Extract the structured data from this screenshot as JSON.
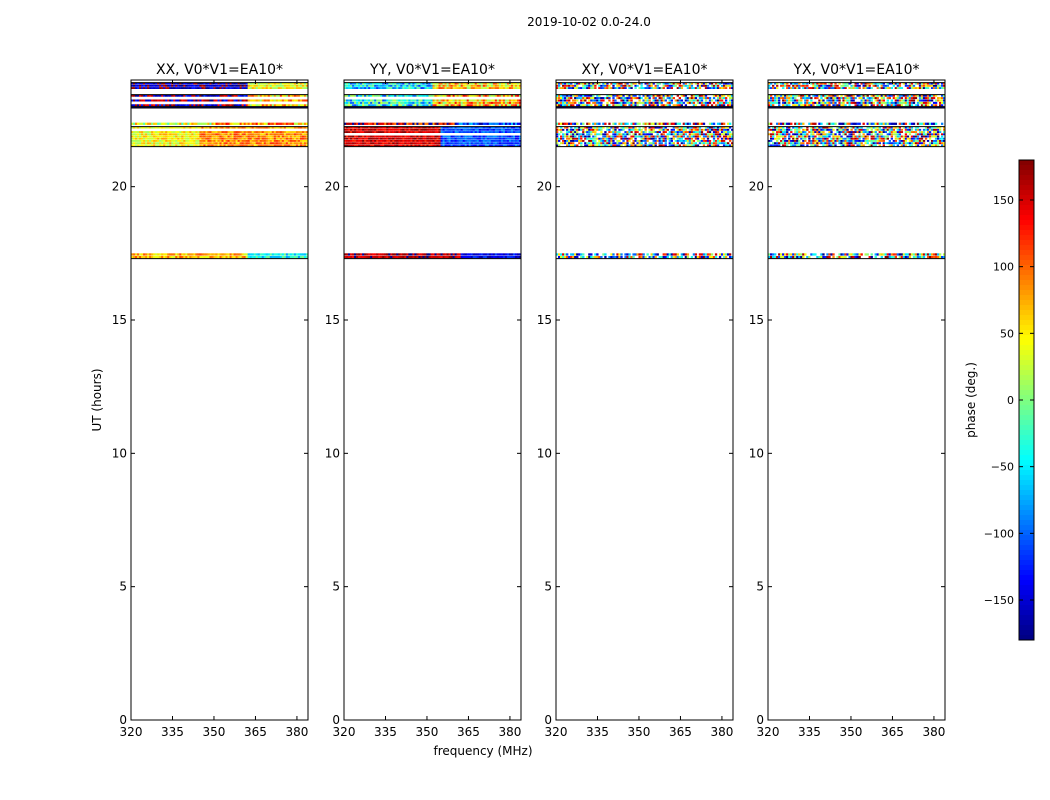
{
  "chart_data": {
    "type": "heatmap",
    "suptitle": "2019-10-02 0.0-24.0",
    "xlabel": "frequency (MHz)",
    "ylabel": "UT (hours)",
    "xlim": [
      320,
      384
    ],
    "ylim": [
      0,
      24
    ],
    "xticks": [
      "320",
      "335",
      "350",
      "365",
      "380"
    ],
    "yticks": [
      "0",
      "5",
      "10",
      "15",
      "20"
    ],
    "colorbar": {
      "label": "phase (deg.)",
      "range": [
        -180,
        180
      ],
      "ticks": [
        "150",
        "100",
        "50",
        "0",
        "−50",
        "−100",
        "−150"
      ],
      "tick_values": [
        150,
        100,
        50,
        0,
        -50,
        -100,
        -150
      ],
      "colormap": "jet"
    },
    "time_bands_hours": [
      [
        23.65,
        23.9
      ],
      [
        23.0,
        23.45
      ],
      [
        22.95,
        23.0
      ],
      [
        22.3,
        22.4
      ],
      [
        21.5,
        22.25
      ],
      [
        17.3,
        17.5
      ]
    ],
    "panels": [
      {
        "title": "XX, V0*V1=EA10*",
        "band_phase_deg": [
          {
            "freq_split_mhz": 362,
            "low_freq_phase": -165,
            "high_freq_phase": 40,
            "noise": 40
          },
          {
            "freq_split_mhz": 362,
            "low_freq_phase": -170,
            "high_freq_phase": 60,
            "noise": 60
          },
          {
            "freq_split_mhz": 384,
            "low_freq_phase": -175,
            "high_freq_phase": -175,
            "noise": 5
          },
          {
            "freq_split_mhz": 350,
            "low_freq_phase": 30,
            "high_freq_phase": 80,
            "noise": 60
          },
          {
            "freq_split_mhz": 345,
            "low_freq_phase": 45,
            "high_freq_phase": 85,
            "noise": 35
          },
          {
            "freq_split_mhz": 362,
            "low_freq_phase": 70,
            "high_freq_phase": -40,
            "noise": 40
          }
        ]
      },
      {
        "title": "YY, V0*V1=EA10*",
        "band_phase_deg": [
          {
            "freq_split_mhz": 352,
            "low_freq_phase": -60,
            "high_freq_phase": 60,
            "noise": 60
          },
          {
            "freq_split_mhz": 352,
            "low_freq_phase": -40,
            "high_freq_phase": 70,
            "noise": 70
          },
          {
            "freq_split_mhz": 384,
            "low_freq_phase": -175,
            "high_freq_phase": -175,
            "noise": 5
          },
          {
            "freq_split_mhz": 360,
            "low_freq_phase": 140,
            "high_freq_phase": -120,
            "noise": 60
          },
          {
            "freq_split_mhz": 355,
            "low_freq_phase": 150,
            "high_freq_phase": -110,
            "noise": 30
          },
          {
            "freq_split_mhz": 362,
            "low_freq_phase": 160,
            "high_freq_phase": -140,
            "noise": 30
          }
        ]
      },
      {
        "title": "XY, V0*V1=EA10*",
        "band_phase_deg": [
          {
            "freq_split_mhz": 384,
            "low_freq_phase": 0,
            "high_freq_phase": 0,
            "noise": 180
          },
          {
            "freq_split_mhz": 384,
            "low_freq_phase": 0,
            "high_freq_phase": 0,
            "noise": 180
          },
          {
            "freq_split_mhz": 384,
            "low_freq_phase": -175,
            "high_freq_phase": -175,
            "noise": 5
          },
          {
            "freq_split_mhz": 384,
            "low_freq_phase": 0,
            "high_freq_phase": 0,
            "noise": 180
          },
          {
            "freq_split_mhz": 384,
            "low_freq_phase": 0,
            "high_freq_phase": 0,
            "noise": 180
          },
          {
            "freq_split_mhz": 384,
            "low_freq_phase": 0,
            "high_freq_phase": 0,
            "noise": 180
          }
        ]
      },
      {
        "title": "YX, V0*V1=EA10*",
        "band_phase_deg": [
          {
            "freq_split_mhz": 384,
            "low_freq_phase": 0,
            "high_freq_phase": 0,
            "noise": 180
          },
          {
            "freq_split_mhz": 384,
            "low_freq_phase": 0,
            "high_freq_phase": 0,
            "noise": 180
          },
          {
            "freq_split_mhz": 384,
            "low_freq_phase": -175,
            "high_freq_phase": -175,
            "noise": 5
          },
          {
            "freq_split_mhz": 384,
            "low_freq_phase": 0,
            "high_freq_phase": 0,
            "noise": 180
          },
          {
            "freq_split_mhz": 384,
            "low_freq_phase": 0,
            "high_freq_phase": 0,
            "noise": 180
          },
          {
            "freq_split_mhz": 384,
            "low_freq_phase": 0,
            "high_freq_phase": 0,
            "noise": 180
          }
        ]
      }
    ]
  }
}
